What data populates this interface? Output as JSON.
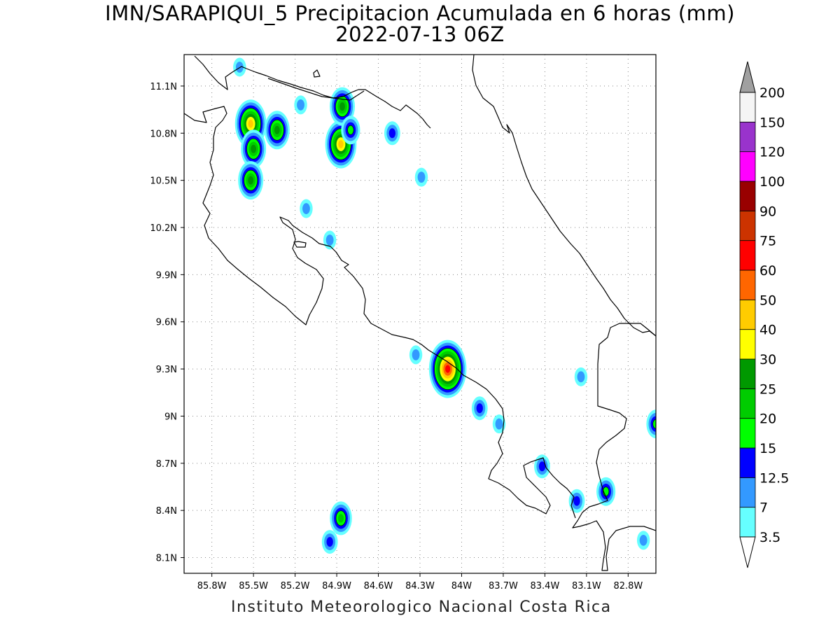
{
  "title": {
    "line1": "IMN/SARAPIQUI_5 Precipitacion Acumulada en 6 horas (mm)",
    "line2": "2022-07-13 06Z"
  },
  "footer": "Instituto Meteorologico Nacional Costa Rica",
  "map": {
    "lon_range": [
      -86.0,
      -82.6
    ],
    "lat_range": [
      8.0,
      11.3
    ],
    "x_ticks": [
      "85.8W",
      "85.5W",
      "85.2W",
      "84.9W",
      "84.6W",
      "84.3W",
      "84W",
      "83.7W",
      "83.4W",
      "83.1W",
      "82.8W"
    ],
    "x_tick_values": [
      -85.8,
      -85.5,
      -85.2,
      -84.9,
      -84.6,
      -84.3,
      -84.0,
      -83.7,
      -83.4,
      -83.1,
      -82.8
    ],
    "y_ticks": [
      "11.1N",
      "10.8N",
      "10.5N",
      "10.2N",
      "9.9N",
      "9.6N",
      "9.3N",
      "9N",
      "8.7N",
      "8.4N",
      "8.1N"
    ],
    "y_tick_values": [
      11.1,
      10.8,
      10.5,
      10.2,
      9.9,
      9.6,
      9.3,
      9.0,
      8.7,
      8.4,
      8.1
    ],
    "grid": "dotted"
  },
  "colorbar": {
    "levels": [
      "3.5",
      "7",
      "12.5",
      "15",
      "20",
      "25",
      "30",
      "40",
      "50",
      "60",
      "75",
      "90",
      "100",
      "120",
      "150",
      "200"
    ],
    "colors": [
      "#66ffff",
      "#3399ff",
      "#0000ff",
      "#00ff00",
      "#00cc00",
      "#009900",
      "#ffff00",
      "#ffcc00",
      "#ff6600",
      "#ff0000",
      "#cc3300",
      "#990000",
      "#ff00ff",
      "#9933cc",
      "#f5f5f5",
      "#ffffff"
    ],
    "over_color": "#a0a0a0",
    "under_color": "#ffffff"
  },
  "precip_cells": [
    {
      "lon": -85.52,
      "lat": 10.86,
      "level": 7
    },
    {
      "lon": -85.5,
      "lat": 10.7,
      "level": 5
    },
    {
      "lon": -85.52,
      "lat": 10.5,
      "level": 5
    },
    {
      "lon": -85.33,
      "lat": 10.82,
      "level": 5
    },
    {
      "lon": -84.87,
      "lat": 10.73,
      "level": 7
    },
    {
      "lon": -84.86,
      "lat": 10.97,
      "level": 5
    },
    {
      "lon": -84.8,
      "lat": 10.82,
      "level": 3
    },
    {
      "lon": -84.1,
      "lat": 9.3,
      "level": 9
    },
    {
      "lon": -82.96,
      "lat": 8.52,
      "level": 3
    },
    {
      "lon": -84.87,
      "lat": 8.35,
      "level": 4
    },
    {
      "lon": -84.95,
      "lat": 8.2,
      "level": 2
    },
    {
      "lon": -84.5,
      "lat": 10.8,
      "level": 2
    },
    {
      "lon": -85.16,
      "lat": 10.98,
      "level": 1
    },
    {
      "lon": -84.29,
      "lat": 10.52,
      "level": 1
    },
    {
      "lon": -85.12,
      "lat": 10.32,
      "level": 1
    },
    {
      "lon": -84.95,
      "lat": 10.12,
      "level": 1
    },
    {
      "lon": -83.87,
      "lat": 9.05,
      "level": 2
    },
    {
      "lon": -83.73,
      "lat": 8.95,
      "level": 1
    },
    {
      "lon": -83.42,
      "lat": 8.68,
      "level": 2
    },
    {
      "lon": -83.17,
      "lat": 8.46,
      "level": 2
    },
    {
      "lon": -82.6,
      "lat": 8.95,
      "level": 3
    },
    {
      "lon": -82.69,
      "lat": 8.21,
      "level": 1
    },
    {
      "lon": -83.14,
      "lat": 9.25,
      "level": 1
    },
    {
      "lon": -84.33,
      "lat": 9.39,
      "level": 1
    },
    {
      "lon": -85.6,
      "lat": 11.22,
      "level": 1
    }
  ]
}
